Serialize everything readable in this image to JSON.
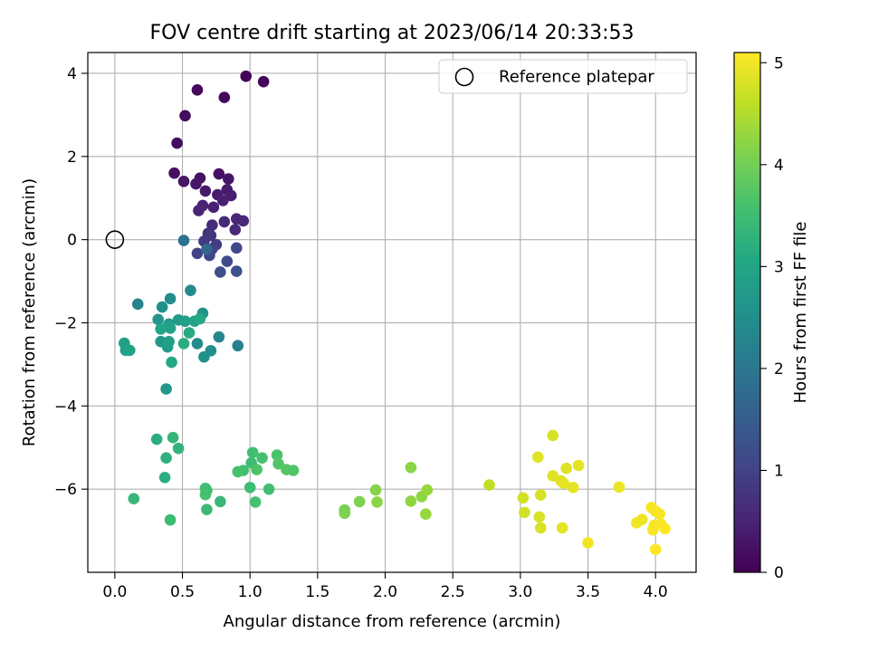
{
  "chart_data": {
    "type": "scatter",
    "title": "FOV centre drift starting at 2023/06/14 20:33:53",
    "xlabel": "Angular distance from reference (arcmin)",
    "ylabel": "Rotation from reference (arcmin)",
    "xlim": [
      -0.2,
      4.3
    ],
    "ylim": [
      -8.0,
      4.5
    ],
    "x_ticks": [
      0.0,
      0.5,
      1.0,
      1.5,
      2.0,
      2.5,
      3.0,
      3.5,
      4.0
    ],
    "x_tick_labels": [
      "0.0",
      "0.5",
      "1.0",
      "1.5",
      "2.0",
      "2.5",
      "3.0",
      "3.5",
      "4.0"
    ],
    "y_ticks": [
      -6,
      -4,
      -2,
      0,
      2,
      4
    ],
    "y_tick_labels": [
      "−6",
      "−4",
      "−2",
      "0",
      "2",
      "4"
    ],
    "grid": true,
    "legend": {
      "placement": "top-right",
      "entries": [
        "Reference platepar"
      ]
    },
    "reference_point": {
      "x": 0.0,
      "y": 0.0,
      "label": "Reference platepar"
    },
    "colorbar": {
      "label": "Hours from first FF file",
      "colormap": "viridis",
      "range": [
        0,
        5.1
      ],
      "ticks": [
        0,
        1,
        2,
        3,
        4,
        5
      ],
      "tick_labels": [
        "0",
        "1",
        "2",
        "3",
        "4",
        "5"
      ]
    },
    "series": [
      {
        "points": [
          {
            "x": 0.97,
            "y": 3.93,
            "c": 0.05
          },
          {
            "x": 1.1,
            "y": 3.8,
            "c": 0.08
          },
          {
            "x": 0.61,
            "y": 3.6,
            "c": 0.1
          },
          {
            "x": 0.81,
            "y": 3.42,
            "c": 0.12
          },
          {
            "x": 0.52,
            "y": 2.98,
            "c": 0.15
          },
          {
            "x": 0.46,
            "y": 2.32,
            "c": 0.18
          },
          {
            "x": 0.44,
            "y": 1.6,
            "c": 0.2
          },
          {
            "x": 0.77,
            "y": 1.58,
            "c": 0.22
          },
          {
            "x": 0.63,
            "y": 1.48,
            "c": 0.25
          },
          {
            "x": 0.84,
            "y": 1.46,
            "c": 0.27
          },
          {
            "x": 0.51,
            "y": 1.4,
            "c": 0.3
          },
          {
            "x": 0.6,
            "y": 1.34,
            "c": 0.32
          },
          {
            "x": 0.67,
            "y": 1.17,
            "c": 0.35
          },
          {
            "x": 0.83,
            "y": 1.2,
            "c": 0.37
          },
          {
            "x": 0.76,
            "y": 1.08,
            "c": 0.4
          },
          {
            "x": 0.86,
            "y": 1.06,
            "c": 0.42
          },
          {
            "x": 0.8,
            "y": 0.94,
            "c": 0.45
          },
          {
            "x": 0.65,
            "y": 0.82,
            "c": 0.47
          },
          {
            "x": 0.73,
            "y": 0.78,
            "c": 0.5
          },
          {
            "x": 0.62,
            "y": 0.7,
            "c": 0.52
          },
          {
            "x": 0.9,
            "y": 0.5,
            "c": 0.55
          },
          {
            "x": 0.95,
            "y": 0.45,
            "c": 0.57
          },
          {
            "x": 0.81,
            "y": 0.43,
            "c": 0.6
          },
          {
            "x": 0.89,
            "y": 0.24,
            "c": 0.62
          },
          {
            "x": 0.72,
            "y": 0.35,
            "c": 0.65
          },
          {
            "x": 0.69,
            "y": 0.15,
            "c": 0.72
          },
          {
            "x": 0.71,
            "y": 0.1,
            "c": 0.78
          },
          {
            "x": 0.66,
            "y": -0.04,
            "c": 0.85
          },
          {
            "x": 0.75,
            "y": -0.12,
            "c": 0.9
          },
          {
            "x": 0.72,
            "y": -0.22,
            "c": 0.95
          },
          {
            "x": 0.61,
            "y": -0.33,
            "c": 1.0
          },
          {
            "x": 0.7,
            "y": -0.38,
            "c": 1.05
          },
          {
            "x": 0.9,
            "y": -0.2,
            "c": 1.1
          },
          {
            "x": 0.83,
            "y": -0.52,
            "c": 1.15
          },
          {
            "x": 0.78,
            "y": -0.78,
            "c": 1.2
          },
          {
            "x": 0.9,
            "y": -0.76,
            "c": 1.25
          },
          {
            "x": 0.68,
            "y": -0.23,
            "c": 1.7
          },
          {
            "x": 0.51,
            "y": -0.02,
            "c": 1.9
          },
          {
            "x": 0.56,
            "y": -1.22,
            "c": 2.4
          },
          {
            "x": 0.17,
            "y": -1.55,
            "c": 2.25
          },
          {
            "x": 0.41,
            "y": -1.42,
            "c": 2.45
          },
          {
            "x": 0.35,
            "y": -1.62,
            "c": 2.55
          },
          {
            "x": 0.65,
            "y": -1.77,
            "c": 2.6
          },
          {
            "x": 0.32,
            "y": -1.92,
            "c": 2.65
          },
          {
            "x": 0.47,
            "y": -1.93,
            "c": 2.75
          },
          {
            "x": 0.52,
            "y": -1.96,
            "c": 2.85
          },
          {
            "x": 0.59,
            "y": -1.96,
            "c": 2.95
          },
          {
            "x": 0.63,
            "y": -1.9,
            "c": 3.05
          },
          {
            "x": 0.4,
            "y": -2.03,
            "c": 2.8
          },
          {
            "x": 0.41,
            "y": -2.13,
            "c": 2.9
          },
          {
            "x": 0.34,
            "y": -2.15,
            "c": 3.0
          },
          {
            "x": 0.55,
            "y": -2.24,
            "c": 3.1
          },
          {
            "x": 0.51,
            "y": -2.5,
            "c": 3.15
          },
          {
            "x": 0.34,
            "y": -2.45,
            "c": 2.7
          },
          {
            "x": 0.39,
            "y": -2.58,
            "c": 2.8
          },
          {
            "x": 0.4,
            "y": -2.45,
            "c": 2.85
          },
          {
            "x": 0.61,
            "y": -2.5,
            "c": 2.4
          },
          {
            "x": 0.77,
            "y": -2.34,
            "c": 2.35
          },
          {
            "x": 0.71,
            "y": -2.67,
            "c": 2.5
          },
          {
            "x": 0.66,
            "y": -2.82,
            "c": 2.55
          },
          {
            "x": 0.91,
            "y": -2.55,
            "c": 2.2
          },
          {
            "x": 0.07,
            "y": -2.49,
            "c": 2.85
          },
          {
            "x": 0.08,
            "y": -2.66,
            "c": 2.9
          },
          {
            "x": 0.11,
            "y": -2.66,
            "c": 2.95
          },
          {
            "x": 0.42,
            "y": -2.95,
            "c": 3.05
          },
          {
            "x": 0.38,
            "y": -3.59,
            "c": 2.7
          },
          {
            "x": 0.31,
            "y": -4.8,
            "c": 3.2
          },
          {
            "x": 0.43,
            "y": -4.76,
            "c": 3.35
          },
          {
            "x": 0.47,
            "y": -5.02,
            "c": 3.3
          },
          {
            "x": 0.38,
            "y": -5.25,
            "c": 3.25
          },
          {
            "x": 0.37,
            "y": -5.72,
            "c": 3.2
          },
          {
            "x": 0.14,
            "y": -6.23,
            "c": 3.4
          },
          {
            "x": 0.41,
            "y": -6.74,
            "c": 3.45
          },
          {
            "x": 0.67,
            "y": -5.98,
            "c": 3.55
          },
          {
            "x": 0.68,
            "y": -6.03,
            "c": 3.5
          },
          {
            "x": 0.67,
            "y": -6.13,
            "c": 3.6
          },
          {
            "x": 0.68,
            "y": -6.49,
            "c": 3.45
          },
          {
            "x": 0.78,
            "y": -6.3,
            "c": 3.4
          },
          {
            "x": 1.02,
            "y": -5.12,
            "c": 3.55
          },
          {
            "x": 1.09,
            "y": -5.25,
            "c": 3.6
          },
          {
            "x": 1.01,
            "y": -5.37,
            "c": 3.5
          },
          {
            "x": 0.95,
            "y": -5.55,
            "c": 3.55
          },
          {
            "x": 0.91,
            "y": -5.58,
            "c": 3.6
          },
          {
            "x": 1.05,
            "y": -5.53,
            "c": 3.65
          },
          {
            "x": 1.2,
            "y": -5.18,
            "c": 3.65
          },
          {
            "x": 1.21,
            "y": -5.39,
            "c": 3.7
          },
          {
            "x": 1.27,
            "y": -5.53,
            "c": 3.75
          },
          {
            "x": 1.32,
            "y": -5.55,
            "c": 3.7
          },
          {
            "x": 1.0,
            "y": -5.96,
            "c": 3.5
          },
          {
            "x": 1.14,
            "y": -6.0,
            "c": 3.55
          },
          {
            "x": 1.04,
            "y": -6.31,
            "c": 3.6
          },
          {
            "x": 1.7,
            "y": -6.5,
            "c": 4.05
          },
          {
            "x": 1.7,
            "y": -6.58,
            "c": 4.1
          },
          {
            "x": 1.81,
            "y": -6.3,
            "c": 4.1
          },
          {
            "x": 1.93,
            "y": -6.02,
            "c": 4.15
          },
          {
            "x": 1.94,
            "y": -6.31,
            "c": 4.2
          },
          {
            "x": 2.19,
            "y": -5.48,
            "c": 4.2
          },
          {
            "x": 2.19,
            "y": -6.29,
            "c": 4.25
          },
          {
            "x": 2.27,
            "y": -6.18,
            "c": 4.25
          },
          {
            "x": 2.31,
            "y": -6.02,
            "c": 4.3
          },
          {
            "x": 2.3,
            "y": -6.6,
            "c": 4.3
          },
          {
            "x": 2.77,
            "y": -5.9,
            "c": 4.6
          },
          {
            "x": 3.02,
            "y": -6.21,
            "c": 4.75
          },
          {
            "x": 3.03,
            "y": -6.56,
            "c": 4.75
          },
          {
            "x": 3.14,
            "y": -6.67,
            "c": 4.8
          },
          {
            "x": 3.15,
            "y": -6.93,
            "c": 4.8
          },
          {
            "x": 3.15,
            "y": -6.14,
            "c": 4.8
          },
          {
            "x": 3.13,
            "y": -5.23,
            "c": 4.85
          },
          {
            "x": 3.24,
            "y": -4.71,
            "c": 4.8
          },
          {
            "x": 3.24,
            "y": -5.68,
            "c": 4.85
          },
          {
            "x": 3.3,
            "y": -5.8,
            "c": 4.85
          },
          {
            "x": 3.34,
            "y": -5.5,
            "c": 4.85
          },
          {
            "x": 3.32,
            "y": -5.86,
            "c": 4.9
          },
          {
            "x": 3.39,
            "y": -5.96,
            "c": 4.9
          },
          {
            "x": 3.43,
            "y": -5.43,
            "c": 4.9
          },
          {
            "x": 3.31,
            "y": -6.93,
            "c": 4.9
          },
          {
            "x": 3.5,
            "y": -7.29,
            "c": 5.0
          },
          {
            "x": 3.73,
            "y": -5.95,
            "c": 4.95
          },
          {
            "x": 3.86,
            "y": -6.81,
            "c": 5.0
          },
          {
            "x": 3.9,
            "y": -6.73,
            "c": 5.0
          },
          {
            "x": 3.97,
            "y": -6.44,
            "c": 5.05
          },
          {
            "x": 4.0,
            "y": -6.53,
            "c": 5.05
          },
          {
            "x": 4.03,
            "y": -6.6,
            "c": 5.05
          },
          {
            "x": 4.04,
            "y": -6.84,
            "c": 5.05
          },
          {
            "x": 3.98,
            "y": -6.98,
            "c": 5.05
          },
          {
            "x": 4.07,
            "y": -6.95,
            "c": 5.1
          },
          {
            "x": 4.0,
            "y": -7.45,
            "c": 5.1
          },
          {
            "x": 3.99,
            "y": -6.87,
            "c": 5.05
          }
        ]
      }
    ]
  }
}
